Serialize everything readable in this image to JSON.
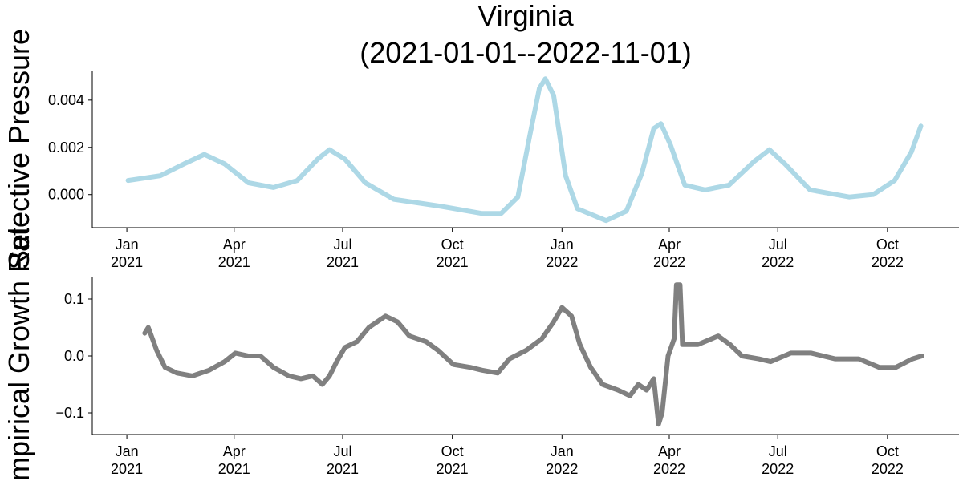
{
  "chart_data": [
    {
      "type": "line",
      "title": [
        "Virginia",
        "(2021-01-01--2022-11-01)"
      ],
      "ylabel": "Selective Pressure",
      "xlim": [
        "2020-12-03",
        "2022-11-30"
      ],
      "xticks": [
        {
          "value": "2021-01-01",
          "label": [
            "Jan",
            "2021"
          ]
        },
        {
          "value": "2021-04-01",
          "label": [
            "Apr",
            "2021"
          ]
        },
        {
          "value": "2021-07-01",
          "label": [
            "Jul",
            "2021"
          ]
        },
        {
          "value": "2021-10-01",
          "label": [
            "Oct",
            "2021"
          ]
        },
        {
          "value": "2022-01-01",
          "label": [
            "Jan",
            "2022"
          ]
        },
        {
          "value": "2022-04-01",
          "label": [
            "Apr",
            "2022"
          ]
        },
        {
          "value": "2022-07-01",
          "label": [
            "Jul",
            "2022"
          ]
        },
        {
          "value": "2022-10-01",
          "label": [
            "Oct",
            "2022"
          ]
        }
      ],
      "ylim": [
        -0.0014,
        0.00525
      ],
      "yticks": [
        {
          "value": 0,
          "label": "0.000"
        },
        {
          "value": 0.002,
          "label": "0.002"
        },
        {
          "value": 0.004,
          "label": "0.004"
        }
      ],
      "x": [
        "2021-01-02",
        "2021-01-29",
        "2021-02-18",
        "2021-03-07",
        "2021-03-24",
        "2021-04-13",
        "2021-05-04",
        "2021-05-24",
        "2021-06-10",
        "2021-06-20",
        "2021-07-03",
        "2021-07-20",
        "2021-08-13",
        "2021-09-22",
        "2021-10-26",
        "2021-11-11",
        "2021-11-25",
        "2021-12-05",
        "2021-12-13",
        "2021-12-18",
        "2021-12-25",
        "2022-01-04",
        "2022-01-14",
        "2022-02-07",
        "2022-02-24",
        "2022-03-09",
        "2022-03-19",
        "2022-03-25",
        "2022-04-02",
        "2022-04-14",
        "2022-05-01",
        "2022-05-21",
        "2022-06-11",
        "2022-06-24",
        "2022-07-07",
        "2022-07-28",
        "2022-08-30",
        "2022-09-19",
        "2022-10-07",
        "2022-10-21",
        "2022-10-29"
      ],
      "series": [
        {
          "color": "#add8e6",
          "values": [
            0.0006,
            0.0008,
            0.0013,
            0.0017,
            0.0013,
            0.0005,
            0.0003,
            0.0006,
            0.0015,
            0.0019,
            0.0015,
            0.0005,
            -0.0002,
            -0.0005,
            -0.0008,
            -0.0008,
            -0.0001,
            0.0025,
            0.0045,
            0.0049,
            0.0042,
            0.0008,
            -0.0006,
            -0.0011,
            -0.0007,
            0.0009,
            0.0028,
            0.003,
            0.0021,
            0.0004,
            0.0002,
            0.0004,
            0.0014,
            0.0019,
            0.0013,
            0.0002,
            -0.0001,
            0,
            0.0006,
            0.0018,
            0.0029
          ]
        }
      ]
    },
    {
      "type": "line",
      "ylabel": "Empirical Growth Rate",
      "xlim": [
        "2020-12-03",
        "2022-11-30"
      ],
      "xticks": [
        {
          "value": "2021-01-01",
          "label": [
            "Jan",
            "2021"
          ]
        },
        {
          "value": "2021-04-01",
          "label": [
            "Apr",
            "2021"
          ]
        },
        {
          "value": "2021-07-01",
          "label": [
            "Jul",
            "2021"
          ]
        },
        {
          "value": "2021-10-01",
          "label": [
            "Oct",
            "2021"
          ]
        },
        {
          "value": "2022-01-01",
          "label": [
            "Jan",
            "2022"
          ]
        },
        {
          "value": "2022-04-01",
          "label": [
            "Apr",
            "2022"
          ]
        },
        {
          "value": "2022-07-01",
          "label": [
            "Jul",
            "2022"
          ]
        },
        {
          "value": "2022-10-01",
          "label": [
            "Oct",
            "2022"
          ]
        }
      ],
      "ylim": [
        -0.138,
        0.138
      ],
      "yticks": [
        {
          "value": -0.1,
          "label": "−0.1"
        },
        {
          "value": 0,
          "label": "0.0"
        },
        0.1
      ],
      "x": [
        "2021-01-16",
        "2021-01-19",
        "2021-01-26",
        "2021-02-02",
        "2021-02-12",
        "2021-02-25",
        "2021-03-11",
        "2021-03-24",
        "2021-04-02",
        "2021-04-13",
        "2021-04-23",
        "2021-05-04",
        "2021-05-17",
        "2021-05-27",
        "2021-06-06",
        "2021-06-14",
        "2021-06-20",
        "2021-06-26",
        "2021-07-03",
        "2021-07-13",
        "2021-07-23",
        "2021-08-06",
        "2021-08-16",
        "2021-08-26",
        "2021-09-09",
        "2021-09-19",
        "2021-10-02",
        "2021-10-16",
        "2021-10-26",
        "2021-11-08",
        "2021-11-18",
        "2021-12-02",
        "2021-12-15",
        "2021-12-25",
        "2022-01-01",
        "2022-01-09",
        "2022-01-16",
        "2022-01-25",
        "2022-02-04",
        "2022-02-17",
        "2022-02-27",
        "2022-03-06",
        "2022-03-13",
        "2022-03-19",
        "2022-03-23",
        "2022-03-26",
        "2022-03-31",
        "2022-04-05",
        "2022-04-07",
        "2022-04-10",
        "2022-04-12",
        "2022-04-25",
        "2022-05-12",
        "2022-05-22",
        "2022-06-01",
        "2022-06-15",
        "2022-06-25",
        "2022-07-12",
        "2022-07-29",
        "2022-08-18",
        "2022-09-07",
        "2022-09-24",
        "2022-10-08",
        "2022-10-22",
        "2022-10-30"
      ],
      "series": [
        {
          "color": "#808080",
          "values": [
            0.04,
            0.05,
            0.01,
            -0.02,
            -0.03,
            -0.035,
            -0.025,
            -0.01,
            0.005,
            0,
            0,
            -0.02,
            -0.035,
            -0.04,
            -0.035,
            -0.05,
            -0.035,
            -0.01,
            0.015,
            0.025,
            0.05,
            0.07,
            0.06,
            0.035,
            0.025,
            0.01,
            -0.015,
            -0.02,
            -0.025,
            -0.03,
            -0.005,
            0.01,
            0.03,
            0.06,
            0.085,
            0.07,
            0.02,
            -0.02,
            -0.05,
            -0.06,
            -0.07,
            -0.05,
            -0.06,
            -0.04,
            -0.12,
            -0.1,
            0,
            0.03,
            0.125,
            0.125,
            0.02,
            0.02,
            0.035,
            0.02,
            0,
            -0.005,
            -0.01,
            0.005,
            0.005,
            -0.005,
            -0.005,
            -0.02,
            -0.02,
            -0.005,
            0
          ]
        }
      ]
    }
  ]
}
